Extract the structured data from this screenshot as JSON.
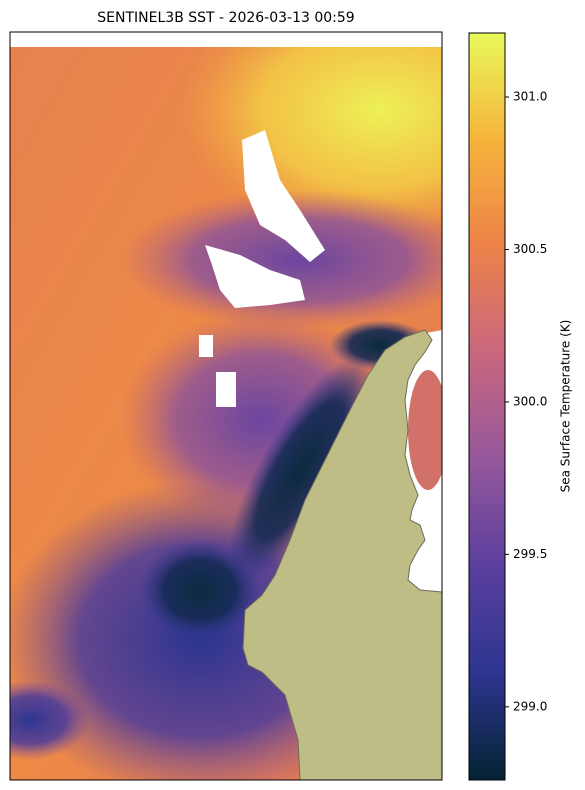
{
  "chart_data": {
    "type": "map",
    "title": "SENTINEL3B SST - 2026-03-13 00:59",
    "colorbar": {
      "label": "Sea Surface Temperature (K)",
      "lim": [
        298.76,
        301.21
      ],
      "ticks": [
        {
          "value": 299,
          "label": "299.0"
        },
        {
          "value": 299.5,
          "label": "299.5"
        },
        {
          "value": 300,
          "label": "300.0"
        },
        {
          "value": 300.5,
          "label": "300.5"
        },
        {
          "value": 301,
          "label": "301.0"
        }
      ],
      "colors": [
        "#042333",
        "#2c3590",
        "#5b3f9e",
        "#95579b",
        "#c9677f",
        "#ec8249",
        "#f6b43c",
        "#e8f95a"
      ]
    }
  }
}
